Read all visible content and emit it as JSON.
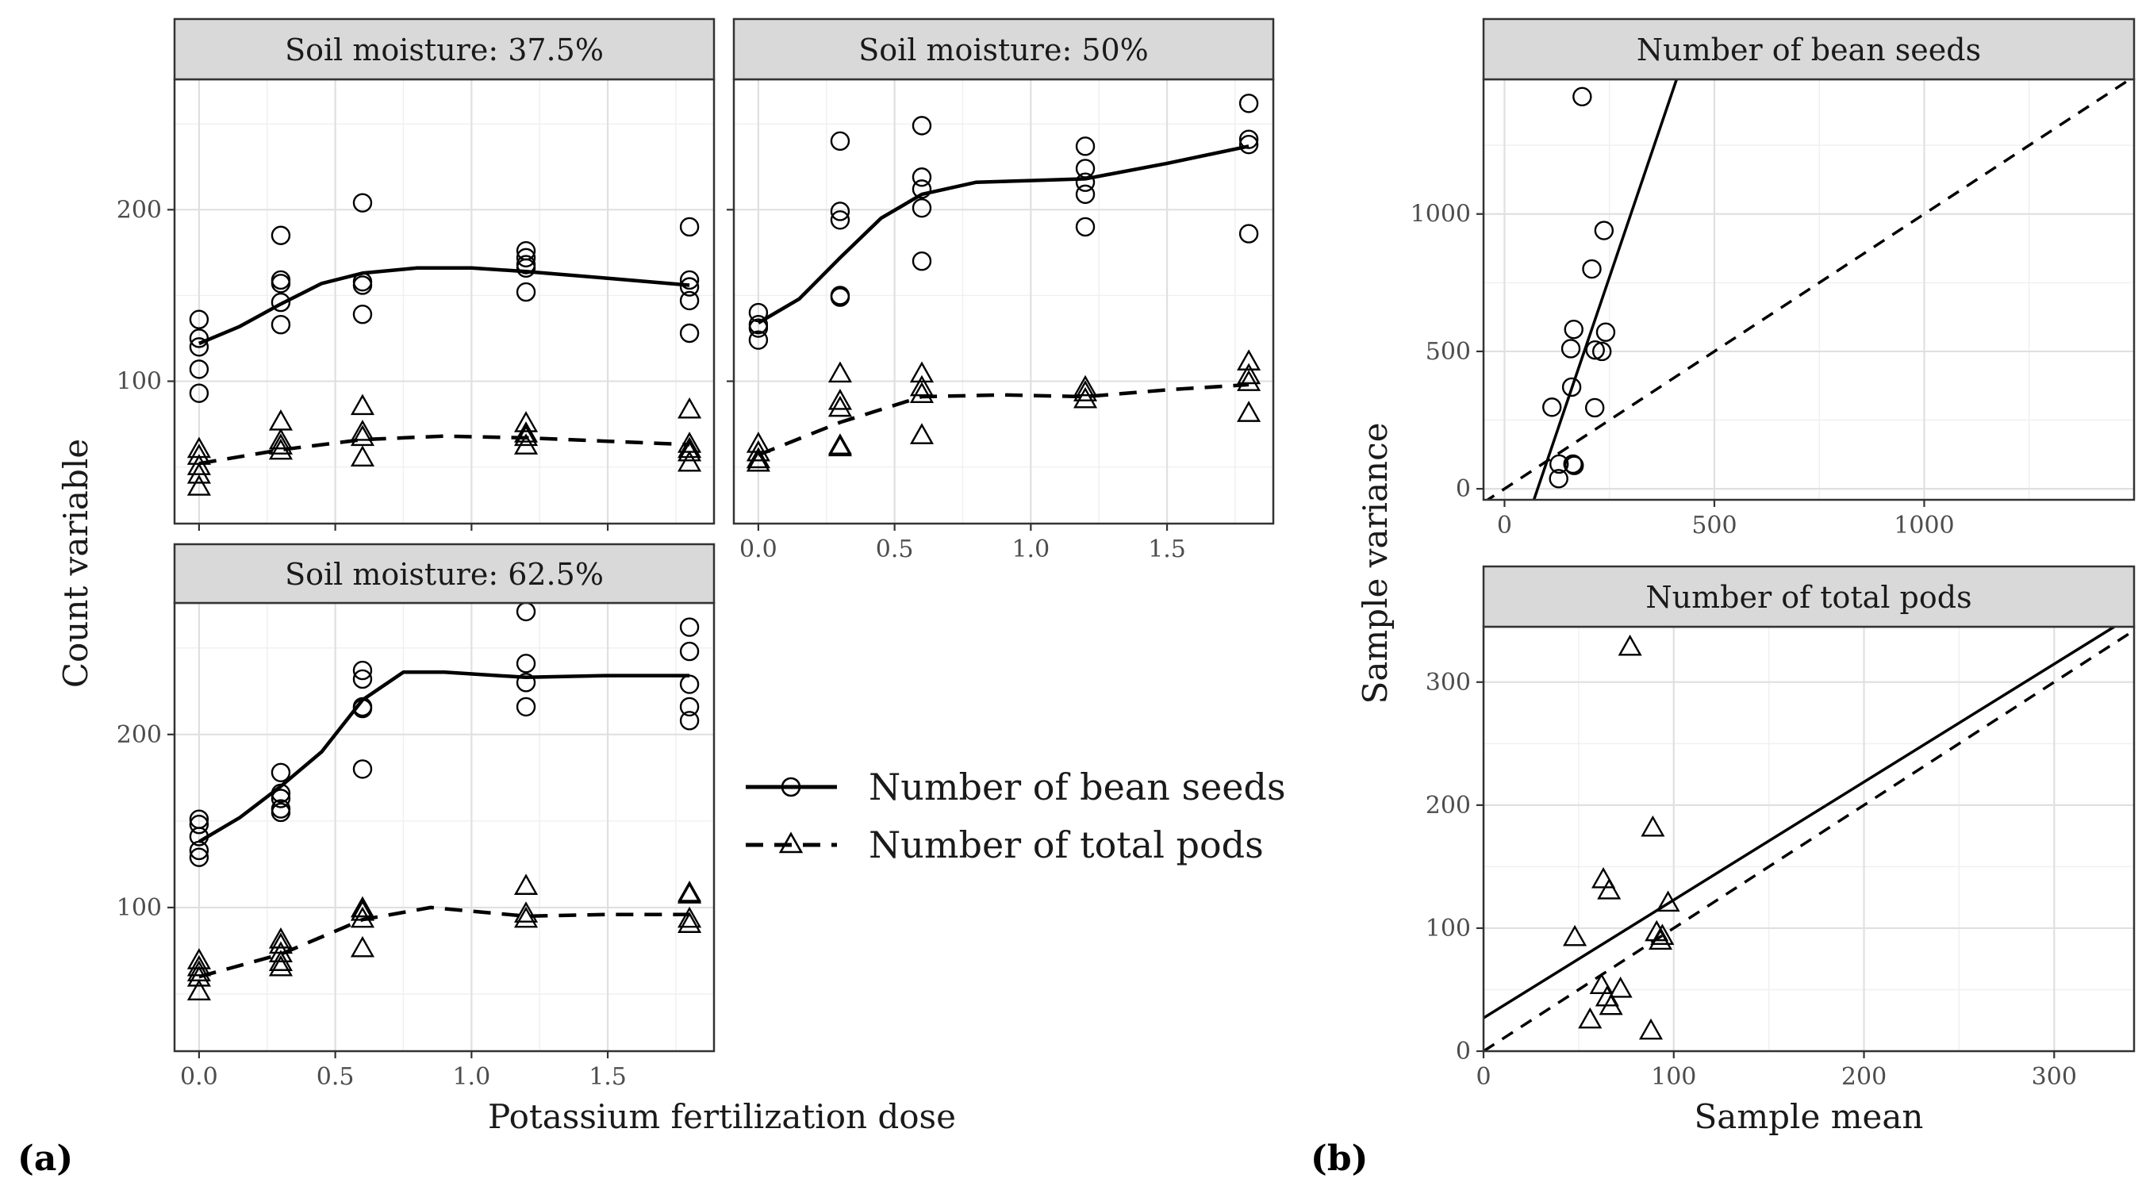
{
  "figure": {
    "label_a": "(a)",
    "label_b": "(b)",
    "a_xlabel": "Potassium fertilization dose",
    "a_ylabel": "Count variable",
    "b_xlabel": "Sample mean",
    "b_ylabel": "Sample variance"
  },
  "legend": {
    "items": [
      {
        "label": "Number of bean seeds",
        "marker": "circle",
        "line": "solid"
      },
      {
        "label": "Number of total pods",
        "marker": "triangle",
        "line": "dashed"
      }
    ]
  },
  "chart_data": [
    {
      "type": "scatter",
      "title": "Soil moisture: 37.5%",
      "xlim": [
        -0.09,
        1.89
      ],
      "ylim": [
        17,
        276
      ],
      "x_ticks": [
        0.0,
        0.5,
        1.0,
        1.5
      ],
      "x_tick_labels": [],
      "y_ticks": [
        100,
        200
      ],
      "y_tick_labels": [
        "100",
        "200"
      ],
      "grid": true,
      "series": [
        {
          "name": "Number of bean seeds",
          "marker": "circle",
          "points": [
            [
              0,
              136
            ],
            [
              0,
              125
            ],
            [
              0,
              120
            ],
            [
              0,
              107
            ],
            [
              0,
              93
            ],
            [
              0.3,
              185
            ],
            [
              0.3,
              159
            ],
            [
              0.3,
              157
            ],
            [
              0.3,
              146
            ],
            [
              0.3,
              133
            ],
            [
              0.6,
              204
            ],
            [
              0.6,
              158
            ],
            [
              0.6,
              156
            ],
            [
              0.6,
              139
            ],
            [
              1.2,
              176
            ],
            [
              1.2,
              172
            ],
            [
              1.2,
              168
            ],
            [
              1.2,
              166
            ],
            [
              1.2,
              152
            ],
            [
              1.8,
              190
            ],
            [
              1.8,
              159
            ],
            [
              1.8,
              155
            ],
            [
              1.8,
              147
            ],
            [
              1.8,
              128
            ]
          ],
          "curve": [
            [
              0,
              122
            ],
            [
              0.15,
              132
            ],
            [
              0.3,
              145
            ],
            [
              0.45,
              157
            ],
            [
              0.6,
              163
            ],
            [
              0.8,
              166
            ],
            [
              1.0,
              166
            ],
            [
              1.2,
              164
            ],
            [
              1.5,
              160
            ],
            [
              1.8,
              156
            ]
          ]
        },
        {
          "name": "Number of total pods",
          "marker": "triangle",
          "points": [
            [
              0,
              60
            ],
            [
              0,
              56
            ],
            [
              0,
              50
            ],
            [
              0,
              45
            ],
            [
              0,
              38
            ],
            [
              0.3,
              76
            ],
            [
              0.3,
              65
            ],
            [
              0.3,
              62
            ],
            [
              0.3,
              59
            ],
            [
              0.6,
              85
            ],
            [
              0.6,
              70
            ],
            [
              0.6,
              67
            ],
            [
              0.6,
              55
            ],
            [
              1.2,
              75
            ],
            [
              1.2,
              69
            ],
            [
              1.2,
              67
            ],
            [
              1.2,
              62
            ],
            [
              1.8,
              83
            ],
            [
              1.8,
              63
            ],
            [
              1.8,
              60
            ],
            [
              1.8,
              58
            ],
            [
              1.8,
              52
            ]
          ],
          "curve": [
            [
              0,
              52
            ],
            [
              0.3,
              60
            ],
            [
              0.6,
              66
            ],
            [
              0.9,
              68
            ],
            [
              1.2,
              67
            ],
            [
              1.5,
              65
            ],
            [
              1.8,
              63
            ]
          ]
        }
      ]
    },
    {
      "type": "scatter",
      "title": "Soil moisture: 50%",
      "xlim": [
        -0.09,
        1.89
      ],
      "ylim": [
        17,
        276
      ],
      "x_ticks": [
        0.0,
        0.5,
        1.0,
        1.5
      ],
      "x_tick_labels": [
        "0.0",
        "0.5",
        "1.0",
        "1.5"
      ],
      "y_ticks": [
        100,
        200
      ],
      "y_tick_labels": [],
      "grid": true,
      "series": [
        {
          "name": "Number of bean seeds",
          "marker": "circle",
          "points": [
            [
              0,
              140
            ],
            [
              0,
              133
            ],
            [
              0,
              131
            ],
            [
              0,
              124
            ],
            [
              0.3,
              240
            ],
            [
              0.3,
              199
            ],
            [
              0.3,
              194
            ],
            [
              0.3,
              150
            ],
            [
              0.3,
              149
            ],
            [
              0.6,
              249
            ],
            [
              0.6,
              219
            ],
            [
              0.6,
              212
            ],
            [
              0.6,
              201
            ],
            [
              0.6,
              170
            ],
            [
              1.2,
              237
            ],
            [
              1.2,
              224
            ],
            [
              1.2,
              216
            ],
            [
              1.2,
              209
            ],
            [
              1.2,
              190
            ],
            [
              1.8,
              262
            ],
            [
              1.8,
              241
            ],
            [
              1.8,
              238
            ],
            [
              1.8,
              186
            ]
          ],
          "curve": [
            [
              0,
              134
            ],
            [
              0.15,
              148
            ],
            [
              0.3,
              172
            ],
            [
              0.45,
              195
            ],
            [
              0.6,
              209
            ],
            [
              0.8,
              216
            ],
            [
              1.0,
              217
            ],
            [
              1.2,
              218
            ],
            [
              1.5,
              227
            ],
            [
              1.8,
              237
            ]
          ]
        },
        {
          "name": "Number of total pods",
          "marker": "triangle",
          "points": [
            [
              0,
              63
            ],
            [
              0,
              58
            ],
            [
              0,
              54
            ],
            [
              0,
              52
            ],
            [
              0.3,
              104
            ],
            [
              0.3,
              88
            ],
            [
              0.3,
              84
            ],
            [
              0.3,
              62
            ],
            [
              0.3,
              61
            ],
            [
              0.6,
              104
            ],
            [
              0.6,
              96
            ],
            [
              0.6,
              92
            ],
            [
              0.6,
              68
            ],
            [
              1.2,
              96
            ],
            [
              1.2,
              93
            ],
            [
              1.2,
              89
            ],
            [
              1.8,
              111
            ],
            [
              1.8,
              103
            ],
            [
              1.8,
              99
            ],
            [
              1.8,
              81
            ]
          ],
          "curve": [
            [
              0,
              57
            ],
            [
              0.3,
              76
            ],
            [
              0.6,
              91
            ],
            [
              0.9,
              92
            ],
            [
              1.2,
              91
            ],
            [
              1.5,
              95
            ],
            [
              1.8,
              98
            ]
          ]
        }
      ]
    },
    {
      "type": "scatter",
      "title": "Soil moisture: 62.5%",
      "xlim": [
        -0.09,
        1.89
      ],
      "ylim": [
        17,
        276
      ],
      "x_ticks": [
        0.0,
        0.5,
        1.0,
        1.5
      ],
      "x_tick_labels": [
        "0.0",
        "0.5",
        "1.0",
        "1.5"
      ],
      "y_ticks": [
        100,
        200
      ],
      "y_tick_labels": [
        "100",
        "200"
      ],
      "grid": true,
      "series": [
        {
          "name": "Number of bean seeds",
          "marker": "circle",
          "points": [
            [
              0,
              151
            ],
            [
              0,
              148
            ],
            [
              0,
              141
            ],
            [
              0,
              133
            ],
            [
              0,
              129
            ],
            [
              0.3,
              178
            ],
            [
              0.3,
              166
            ],
            [
              0.3,
              163
            ],
            [
              0.3,
              157
            ],
            [
              0.3,
              155
            ],
            [
              0.6,
              237
            ],
            [
              0.6,
              232
            ],
            [
              0.6,
              216
            ],
            [
              0.6,
              215
            ],
            [
              0.6,
              180
            ],
            [
              1.2,
              271
            ],
            [
              1.2,
              241
            ],
            [
              1.2,
              230
            ],
            [
              1.2,
              216
            ],
            [
              1.8,
              262
            ],
            [
              1.8,
              248
            ],
            [
              1.8,
              229
            ],
            [
              1.8,
              216
            ],
            [
              1.8,
              208
            ]
          ],
          "curve": [
            [
              0,
              138
            ],
            [
              0.15,
              152
            ],
            [
              0.3,
              170
            ],
            [
              0.45,
              190
            ],
            [
              0.6,
              220
            ],
            [
              0.75,
              236
            ],
            [
              0.9,
              236
            ],
            [
              1.2,
              233
            ],
            [
              1.5,
              234
            ],
            [
              1.8,
              234
            ]
          ]
        },
        {
          "name": "Number of total pods",
          "marker": "triangle",
          "points": [
            [
              0,
              69
            ],
            [
              0,
              65
            ],
            [
              0,
              62
            ],
            [
              0,
              59
            ],
            [
              0,
              51
            ],
            [
              0.3,
              81
            ],
            [
              0.3,
              78
            ],
            [
              0.3,
              73
            ],
            [
              0.3,
              68
            ],
            [
              0.3,
              65
            ],
            [
              0.6,
              99
            ],
            [
              0.6,
              97
            ],
            [
              0.6,
              93
            ],
            [
              0.6,
              76
            ],
            [
              1.2,
              112
            ],
            [
              1.2,
              96
            ],
            [
              1.2,
              93
            ],
            [
              1.8,
              108
            ],
            [
              1.8,
              107
            ],
            [
              1.8,
              93
            ],
            [
              1.8,
              90
            ]
          ],
          "curve": [
            [
              0,
              60
            ],
            [
              0.3,
              73
            ],
            [
              0.6,
              93
            ],
            [
              0.85,
              100
            ],
            [
              1.2,
              95
            ],
            [
              1.5,
              96
            ],
            [
              1.8,
              96
            ]
          ]
        }
      ]
    },
    {
      "type": "scatter",
      "title": "Number of bean seeds",
      "xlim": [
        -50,
        1500
      ],
      "ylim": [
        -40,
        1490
      ],
      "x_ticks": [
        0,
        500,
        1000
      ],
      "x_tick_labels": [
        "0",
        "500",
        "1000"
      ],
      "y_ticks": [
        0,
        500,
        1000
      ],
      "y_tick_labels": [
        "0",
        "500",
        "1000"
      ],
      "grid": true,
      "series": [
        {
          "name": "Number of bean seeds",
          "marker": "circle",
          "points": [
            [
              185,
              1427
            ],
            [
              237,
              940
            ],
            [
              208,
              800
            ],
            [
              165,
              580
            ],
            [
              241,
              570
            ],
            [
              158,
              510
            ],
            [
              216,
              505
            ],
            [
              232,
              500
            ],
            [
              160,
              370
            ],
            [
              113,
              297
            ],
            [
              215,
              295
            ],
            [
              130,
              90
            ],
            [
              163,
              90
            ],
            [
              166,
              85
            ],
            [
              129,
              37
            ]
          ]
        }
      ],
      "lines": [
        {
          "style": "solid",
          "points": [
            [
              70,
              -40
            ],
            [
              410,
              1490
            ]
          ]
        },
        {
          "style": "dashed",
          "points": [
            [
              -50,
              -50
            ],
            [
              1500,
              1500
            ]
          ]
        }
      ]
    },
    {
      "type": "scatter",
      "title": "Number of total pods",
      "xlim": [
        0,
        342
      ],
      "ylim": [
        0,
        345
      ],
      "x_ticks": [
        0,
        100,
        200,
        300
      ],
      "x_tick_labels": [
        "0",
        "100",
        "200",
        "300"
      ],
      "y_ticks": [
        0,
        100,
        200,
        300
      ],
      "y_tick_labels": [
        "0",
        "100",
        "200",
        "300"
      ],
      "grid": true,
      "series": [
        {
          "name": "Number of total pods",
          "marker": "triangle",
          "points": [
            [
              77,
              328
            ],
            [
              89,
              181
            ],
            [
              63,
              139
            ],
            [
              66,
              130
            ],
            [
              97,
              120
            ],
            [
              48,
              92
            ],
            [
              91,
              96
            ],
            [
              93,
              89
            ],
            [
              94,
              93
            ],
            [
              62,
              53
            ],
            [
              72,
              50
            ],
            [
              65,
              43
            ],
            [
              67,
              36
            ],
            [
              56,
              25
            ],
            [
              88,
              16
            ]
          ]
        }
      ],
      "lines": [
        {
          "style": "solid",
          "points": [
            [
              0,
              27
            ],
            [
              342,
              355
            ]
          ]
        },
        {
          "style": "dashed",
          "points": [
            [
              0,
              0
            ],
            [
              345,
              345
            ]
          ]
        }
      ]
    }
  ]
}
